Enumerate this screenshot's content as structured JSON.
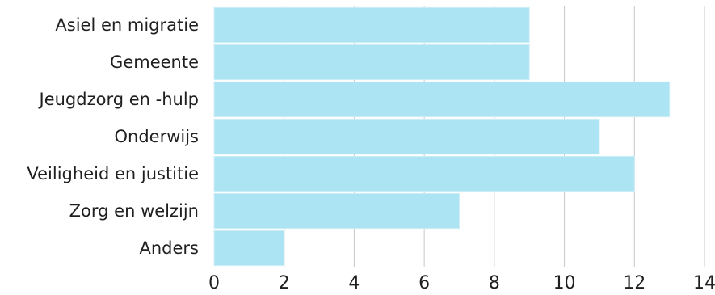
{
  "chart_data": {
    "type": "bar",
    "orientation": "horizontal",
    "categories": [
      "Asiel en migratie",
      "Gemeente",
      "Jeugdzorg en -hulp",
      "Onderwijs",
      "Veiligheid en justitie",
      "Zorg en welzijn",
      "Anders"
    ],
    "values": [
      9,
      9,
      13,
      11,
      12,
      7,
      2
    ],
    "xlim": [
      0,
      14
    ],
    "xticks": [
      "0",
      "2",
      "4",
      "6",
      "8",
      "10",
      "12",
      "14"
    ],
    "title": "",
    "xlabel": "",
    "ylabel": "",
    "grid": "vertical",
    "bar_color": "#ade4f3"
  }
}
